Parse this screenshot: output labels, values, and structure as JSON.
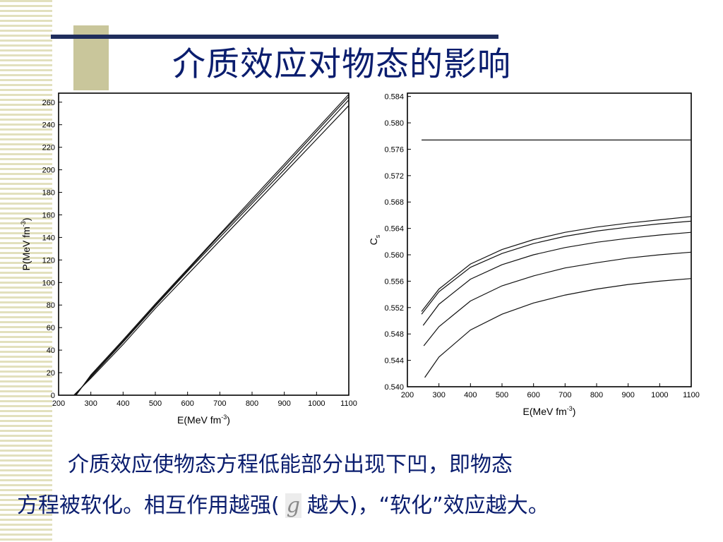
{
  "slide": {
    "title": "介质效应对物态的影响",
    "caption": {
      "line1": "介质效应使物态方程低能部分出现下凹，即物态",
      "line2_before": "方程被软化。相互作用越强(",
      "symbol": "g",
      "line2_after": "越大)，“软化”效应越大。"
    }
  },
  "colors": {
    "title": "#0a1d6e",
    "text": "#0a1d6e",
    "stripe": "#e2e0bd",
    "accent": "#c9c69b",
    "rule": "#1f2d5c"
  },
  "chart_data": [
    {
      "type": "line",
      "xlabel": "E(MeV fm",
      "xlabel_sup": "-3",
      "xlabel_close": ")",
      "ylabel": "P(MeV fm",
      "ylabel_sup": "-3",
      "ylabel_close": ")",
      "xlim": [
        200,
        1100
      ],
      "ylim": [
        0,
        268
      ],
      "xticks": [
        200,
        300,
        400,
        500,
        600,
        700,
        800,
        900,
        1000,
        1100
      ],
      "yticks": [
        0,
        20,
        40,
        60,
        80,
        100,
        120,
        140,
        160,
        180,
        200,
        220,
        240,
        260
      ],
      "series": [
        {
          "x": [
            247,
            300,
            400,
            500,
            600,
            700,
            800,
            900,
            1000,
            1100
          ],
          "values": [
            0,
            15,
            45,
            77,
            107,
            137,
            167,
            197,
            227,
            257
          ]
        },
        {
          "x": [
            250,
            300,
            400,
            500,
            600,
            700,
            800,
            900,
            1000,
            1100
          ],
          "values": [
            0,
            16,
            47,
            79,
            110,
            140,
            170,
            200,
            231,
            262
          ]
        },
        {
          "x": [
            252,
            300,
            400,
            500,
            600,
            700,
            800,
            900,
            1000,
            1100
          ],
          "values": [
            0,
            17,
            48,
            80,
            111,
            142,
            172,
            203,
            234,
            265
          ]
        },
        {
          "x": [
            254,
            300,
            400,
            500,
            600,
            700,
            800,
            900,
            1000,
            1100
          ],
          "values": [
            0,
            18,
            49,
            81,
            112,
            143,
            174,
            205,
            236,
            267
          ]
        }
      ]
    },
    {
      "type": "line",
      "xlabel": "E(MeV fm",
      "xlabel_sup": "-3",
      "xlabel_close": ")",
      "ylabel": "C",
      "ylabel_sub": "s",
      "xlim": [
        200,
        1100
      ],
      "ylim": [
        0.54,
        0.5845
      ],
      "xticks": [
        200,
        300,
        400,
        500,
        600,
        700,
        800,
        900,
        1000,
        1100
      ],
      "yticks": [
        "0.540",
        "0.544",
        "0.548",
        "0.552",
        "0.556",
        "0.560",
        "0.564",
        "0.568",
        "0.572",
        "0.576",
        "0.580",
        "0.584"
      ],
      "series": [
        {
          "x": [
            245,
            300,
            400,
            500,
            600,
            700,
            800,
            900,
            1000,
            1100
          ],
          "values": [
            0.5774,
            0.5774,
            0.5774,
            0.5774,
            0.5774,
            0.5774,
            0.5774,
            0.5774,
            0.5774,
            0.5774
          ]
        },
        {
          "x": [
            245,
            300,
            400,
            500,
            600,
            700,
            800,
            900,
            1000,
            1100
          ],
          "values": [
            0.5514,
            0.5548,
            0.5586,
            0.5608,
            0.5623,
            0.5634,
            0.5642,
            0.5648,
            0.5653,
            0.5658
          ]
        },
        {
          "x": [
            245,
            300,
            400,
            500,
            600,
            700,
            800,
            900,
            1000,
            1100
          ],
          "values": [
            0.551,
            0.5544,
            0.5581,
            0.5602,
            0.5617,
            0.5628,
            0.5636,
            0.5642,
            0.5647,
            0.5651
          ]
        },
        {
          "x": [
            250,
            300,
            400,
            500,
            600,
            700,
            800,
            900,
            1000,
            1100
          ],
          "values": [
            0.5493,
            0.5525,
            0.5563,
            0.5585,
            0.56,
            0.5611,
            0.5619,
            0.5625,
            0.563,
            0.5634
          ]
        },
        {
          "x": [
            252,
            300,
            400,
            500,
            600,
            700,
            800,
            900,
            1000,
            1100
          ],
          "values": [
            0.5462,
            0.5491,
            0.553,
            0.5553,
            0.5568,
            0.558,
            0.5588,
            0.5595,
            0.56,
            0.5604
          ]
        },
        {
          "x": [
            255,
            300,
            400,
            500,
            600,
            700,
            800,
            900,
            1000,
            1100
          ],
          "values": [
            0.5414,
            0.5445,
            0.5486,
            0.551,
            0.5527,
            0.5539,
            0.5548,
            0.5555,
            0.556,
            0.5564
          ]
        }
      ]
    }
  ]
}
